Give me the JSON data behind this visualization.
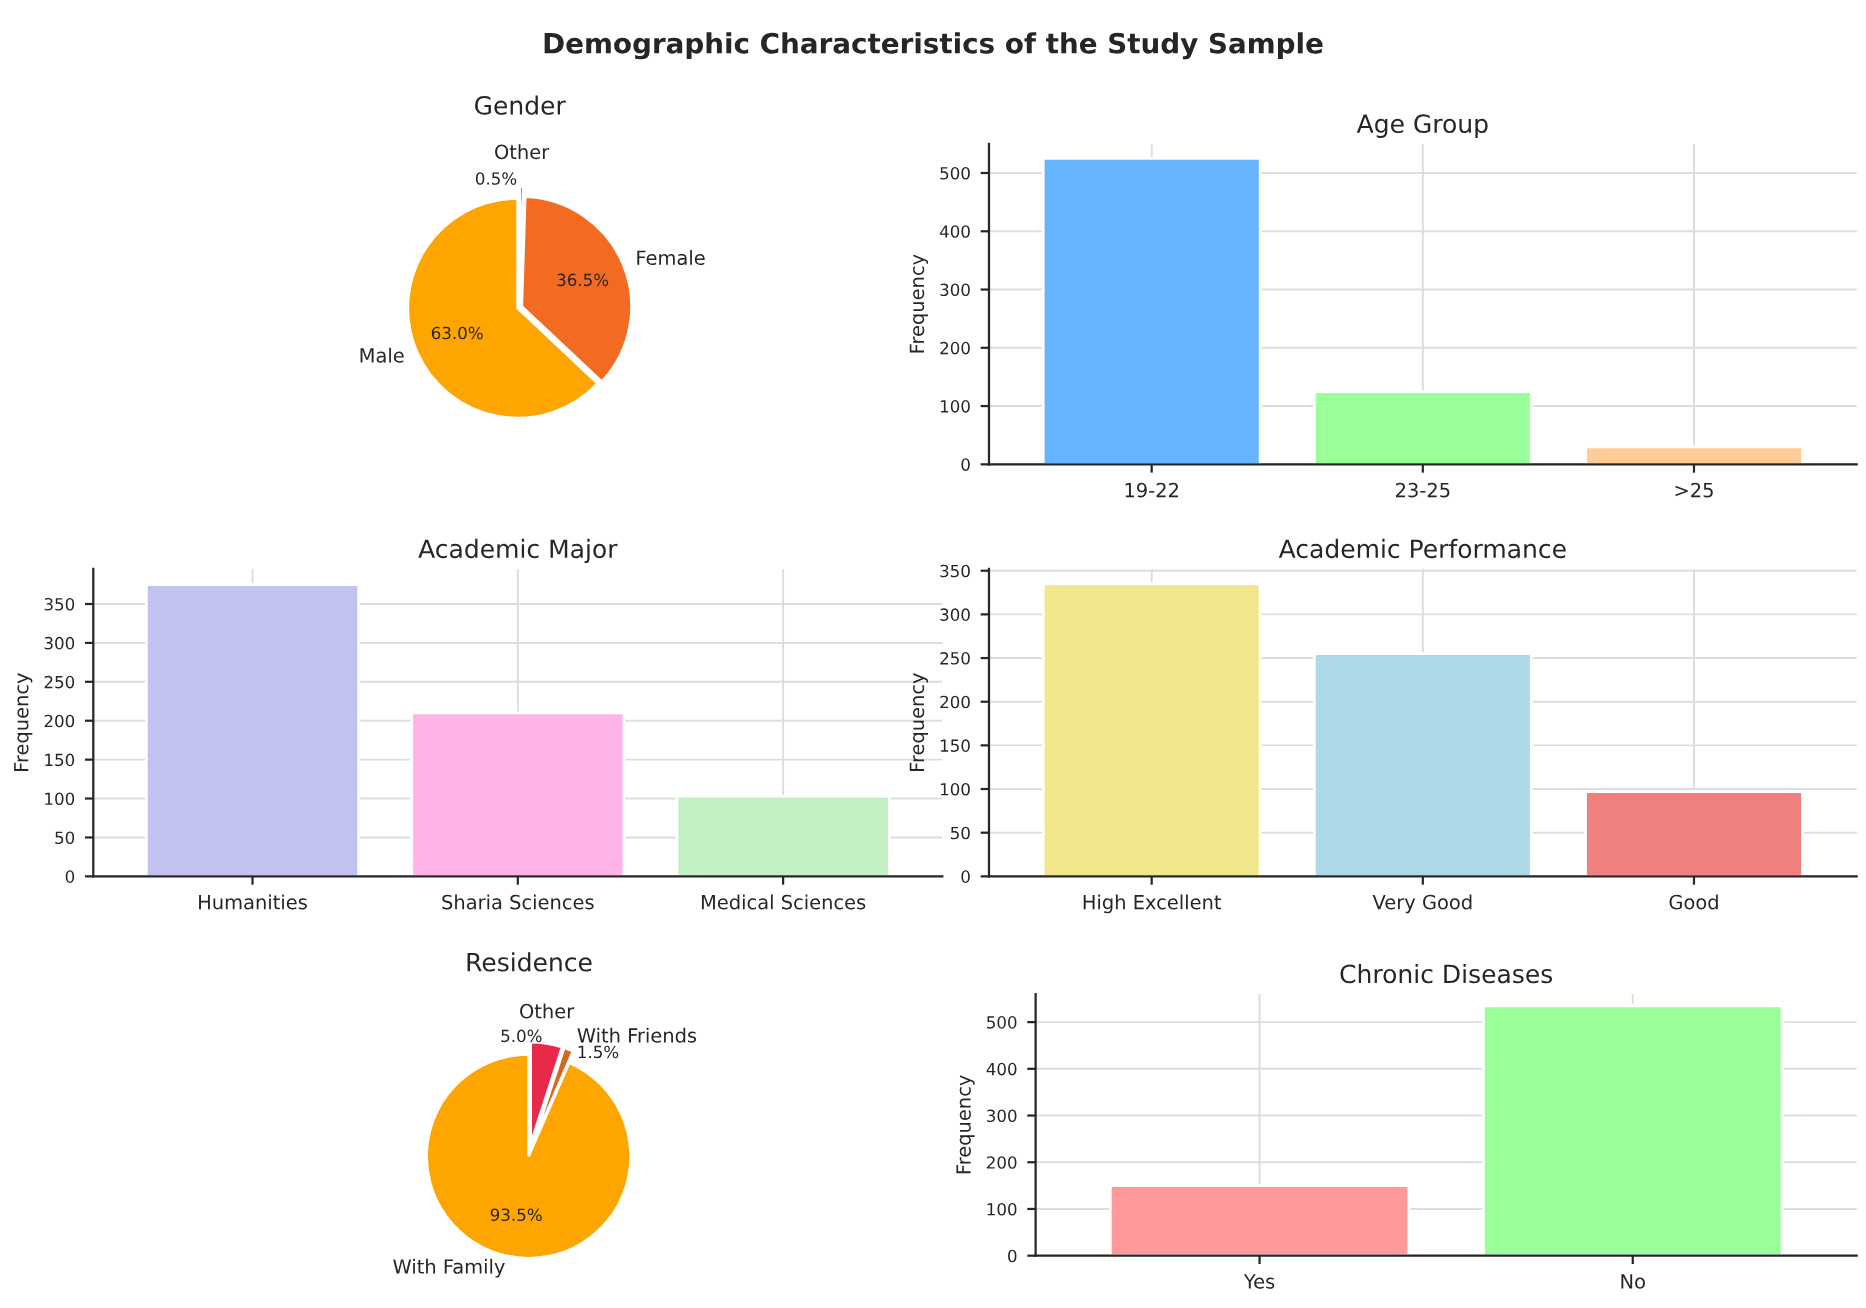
{
  "chart_data": [
    {
      "type": "pie",
      "title": "Gender",
      "categories": [
        "Other",
        "Female",
        "Male"
      ],
      "values": [
        0.5,
        36.5,
        63.0
      ],
      "value_labels": [
        "0.5%",
        "36.5%",
        "63.0%"
      ],
      "colors": [
        "#8b1a1a",
        "#f26b21",
        "#ffa500"
      ],
      "annotations": [
        "Demographic Characteristics of the Study Sample"
      ]
    },
    {
      "type": "bar",
      "title": "Age Group",
      "categories": [
        "19-22",
        "23-25",
        ">25"
      ],
      "values": [
        525,
        125,
        30
      ],
      "colors": [
        "#66b3ff",
        "#99ff99",
        "#ffcc99"
      ],
      "ylabel": "Frequency",
      "ylim": [
        0,
        550
      ],
      "yticks": [
        0,
        100,
        200,
        300,
        400,
        500
      ],
      "grid": true
    },
    {
      "type": "bar",
      "title": "Academic Major",
      "categories": [
        "Humanities",
        "Sharia Sciences",
        "Medical Sciences"
      ],
      "values": [
        375,
        210,
        103
      ],
      "colors": [
        "#c2c2f0",
        "#ffb3e6",
        "#c2f0c2"
      ],
      "ylabel": "Frequency",
      "ylim": [
        0,
        395
      ],
      "yticks": [
        0,
        50,
        100,
        150,
        200,
        250,
        300,
        350
      ],
      "grid": true
    },
    {
      "type": "bar",
      "title": "Academic Performance",
      "categories": [
        "High Excellent",
        "Very Good",
        "Good"
      ],
      "values": [
        335,
        255,
        97
      ],
      "colors": [
        "#f0e68c",
        "#add8e6",
        "#f08080"
      ],
      "ylabel": "Frequency",
      "ylim": [
        0,
        352
      ],
      "yticks": [
        0,
        50,
        100,
        150,
        200,
        250,
        300,
        350
      ],
      "grid": true
    },
    {
      "type": "pie",
      "title": "Residence",
      "categories": [
        "Other",
        "With Friends",
        "With Family"
      ],
      "values": [
        5.0,
        1.5,
        93.5
      ],
      "value_labels": [
        "5.0%",
        "1.5%",
        "93.5%"
      ],
      "colors": [
        "#e8294a",
        "#d2691e",
        "#ffa500"
      ]
    },
    {
      "type": "bar",
      "title": "Chronic Diseases",
      "categories": [
        "Yes",
        "No"
      ],
      "values": [
        150,
        535
      ],
      "colors": [
        "#ff9999",
        "#99ff99"
      ],
      "ylabel": "Frequency",
      "ylim": [
        0,
        560
      ],
      "yticks": [
        0,
        100,
        200,
        300,
        400,
        500
      ],
      "grid": true
    }
  ]
}
